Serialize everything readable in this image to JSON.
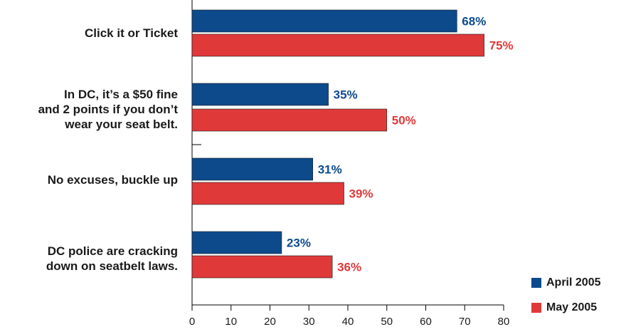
{
  "chart_data": {
    "type": "bar",
    "orientation": "horizontal",
    "categories": [
      "Click it or Ticket",
      "In DC, it’s a $50 fine\nand 2 points if you don’t\nwear your seat belt.",
      "No excuses, buckle up",
      "DC police are cracking\ndown on seatbelt laws."
    ],
    "series": [
      {
        "name": "April 2005",
        "color": "#0d4a8c",
        "values": [
          68,
          35,
          31,
          23
        ],
        "labels": [
          "68%",
          "35%",
          "31%",
          "23%"
        ]
      },
      {
        "name": "May 2005",
        "color": "#e0393a",
        "values": [
          75,
          50,
          39,
          36
        ],
        "labels": [
          "75%",
          "50%",
          "39%",
          "36%"
        ]
      }
    ],
    "xlim": [
      0,
      80
    ],
    "xticks": [
      "0",
      "10",
      "20",
      "30",
      "40",
      "50",
      "60",
      "70",
      "80"
    ],
    "title": "",
    "xlabel": "",
    "ylabel": "",
    "grid": false,
    "legend_position": "bottom-right"
  }
}
